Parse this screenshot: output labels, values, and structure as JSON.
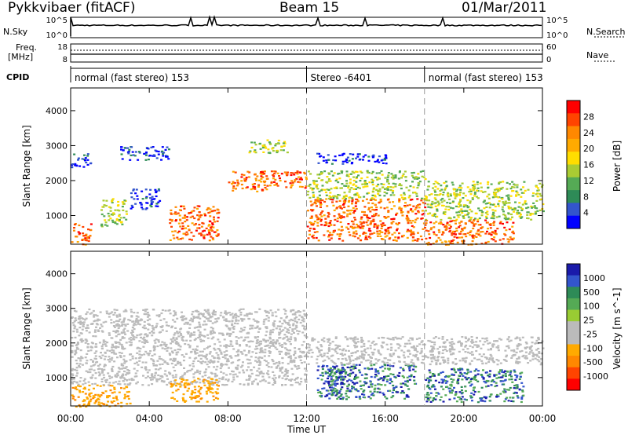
{
  "header": {
    "radar": "Pykkvibaer (fitACF)",
    "beam": "Beam 15",
    "date": "01/Mar/2011"
  },
  "strip_labels": {
    "nsky": "N.Sky",
    "nsky_ticks": [
      "10^5",
      "10^0"
    ],
    "nsearch": "N.Search",
    "nsearch_ticks": [
      "10^5",
      "10^0"
    ],
    "freq_line1": "Freq.",
    "freq_line2": "[MHz]",
    "freq_ticks": [
      "18",
      "8"
    ],
    "nave": "Nave",
    "nave_ticks": [
      "60",
      "0"
    ],
    "cpid": "CPID"
  },
  "cpid_segments": [
    {
      "label": "normal (fast stereo) 153",
      "start": 0
    },
    {
      "label": "Stereo -6401",
      "start": 12
    },
    {
      "label": "normal (fast stereo) 153",
      "start": 18
    }
  ],
  "chart_data": [
    {
      "type": "heatmap",
      "title": "",
      "xlabel": "Time UT",
      "ylabel": "Slant Range [km]",
      "xlim": [
        0,
        24
      ],
      "x_ticks": [
        "00:00",
        "04:00",
        "08:00",
        "12:00",
        "16:00",
        "20:00",
        "00:00"
      ],
      "x_tick_values": [
        0,
        4,
        8,
        12,
        16,
        20,
        24
      ],
      "ylim": [
        180,
        4650
      ],
      "y_ticks": [
        1000,
        2000,
        3000,
        4000
      ],
      "colorbar": {
        "label": "Power [dB]",
        "ticks": [
          "28",
          "24",
          "20",
          "16",
          "12",
          "8",
          "4"
        ],
        "colors": [
          "#ff0000",
          "#ff4400",
          "#ff8800",
          "#ffaa00",
          "#ffdd00",
          "#aacc33",
          "#55aa55",
          "#2e8b57",
          "#3355cc",
          "#0000ff"
        ]
      },
      "regions": [
        {
          "t0": 0.0,
          "t1": 1.0,
          "r0": 2400,
          "r1": 2800,
          "value": "low power"
        },
        {
          "t0": 0.0,
          "t1": 1.0,
          "r0": 180,
          "r1": 800,
          "value": "mixed, strong near 300 km"
        },
        {
          "t0": 1.5,
          "t1": 2.8,
          "r0": 700,
          "r1": 1500,
          "value": "moderate"
        },
        {
          "t0": 2.5,
          "t1": 5.0,
          "r0": 2600,
          "r1": 3000,
          "value": "low power"
        },
        {
          "t0": 3.0,
          "t1": 4.5,
          "r0": 1200,
          "r1": 1800,
          "value": "low power"
        },
        {
          "t0": 5.0,
          "t1": 7.5,
          "r0": 300,
          "r1": 1300,
          "value": "moderate to strong"
        },
        {
          "t0": 8.0,
          "t1": 10.0,
          "r0": 1700,
          "r1": 2300,
          "value": "strong"
        },
        {
          "t0": 9.0,
          "t1": 11.0,
          "r0": 2800,
          "r1": 3200,
          "value": "moderate"
        },
        {
          "t0": 10.0,
          "t1": 12.0,
          "r0": 1800,
          "r1": 2300,
          "value": "strong"
        },
        {
          "t0": 12.0,
          "t1": 18.0,
          "r0": 300,
          "r1": 1500,
          "value": "strong"
        },
        {
          "t0": 12.0,
          "t1": 18.0,
          "r0": 1500,
          "r1": 2300,
          "value": "moderate"
        },
        {
          "t0": 12.5,
          "t1": 16.0,
          "r0": 2500,
          "r1": 2800,
          "value": "low power"
        },
        {
          "t0": 18.0,
          "t1": 22.5,
          "r0": 180,
          "r1": 900,
          "value": "strong"
        },
        {
          "t0": 18.0,
          "t1": 24.0,
          "r0": 900,
          "r1": 2000,
          "value": "moderate"
        }
      ]
    },
    {
      "type": "heatmap",
      "title": "",
      "xlabel": "Time UT",
      "ylabel": "Slant Range [km]",
      "xlim": [
        0,
        24
      ],
      "x_ticks": [
        "00:00",
        "04:00",
        "08:00",
        "12:00",
        "16:00",
        "20:00",
        "00:00"
      ],
      "x_tick_values": [
        0,
        4,
        8,
        12,
        16,
        20,
        24
      ],
      "ylim": [
        180,
        4650
      ],
      "y_ticks": [
        1000,
        2000,
        3000,
        4000
      ],
      "colorbar": {
        "label": "Velocity [m s^-1]",
        "ticks": [
          "1000",
          "500",
          "100",
          "25",
          "-25",
          "-100",
          "-500",
          "-1000"
        ],
        "colors": [
          "#1a1aaa",
          "#3355cc",
          "#2e8b57",
          "#55aa55",
          "#99cc33",
          "#bbbbbb",
          "#bbbbbb",
          "#ffaa00",
          "#ff8800",
          "#ff4400",
          "#ff0000"
        ]
      },
      "regions": [
        {
          "t0": 0.0,
          "t1": 3.0,
          "r0": 180,
          "r1": 800,
          "value": "negative (-100 to -500)"
        },
        {
          "t0": 0.0,
          "t1": 12.0,
          "r0": 800,
          "r1": 3000,
          "value": "near zero (ground scatter)"
        },
        {
          "t0": 5.0,
          "t1": 7.5,
          "r0": 300,
          "r1": 1000,
          "value": "negative (-100)"
        },
        {
          "t0": 12.5,
          "t1": 17.5,
          "r0": 400,
          "r1": 1400,
          "value": "positive (100 to 1000)"
        },
        {
          "t0": 13.0,
          "t1": 14.5,
          "r0": 500,
          "r1": 1300,
          "value": "positive (>500)"
        },
        {
          "t0": 12.0,
          "t1": 24.0,
          "r0": 1400,
          "r1": 2200,
          "value": "near zero"
        },
        {
          "t0": 18.0,
          "t1": 23.0,
          "r0": 300,
          "r1": 1300,
          "value": "positive (25 to 500)"
        }
      ]
    }
  ]
}
